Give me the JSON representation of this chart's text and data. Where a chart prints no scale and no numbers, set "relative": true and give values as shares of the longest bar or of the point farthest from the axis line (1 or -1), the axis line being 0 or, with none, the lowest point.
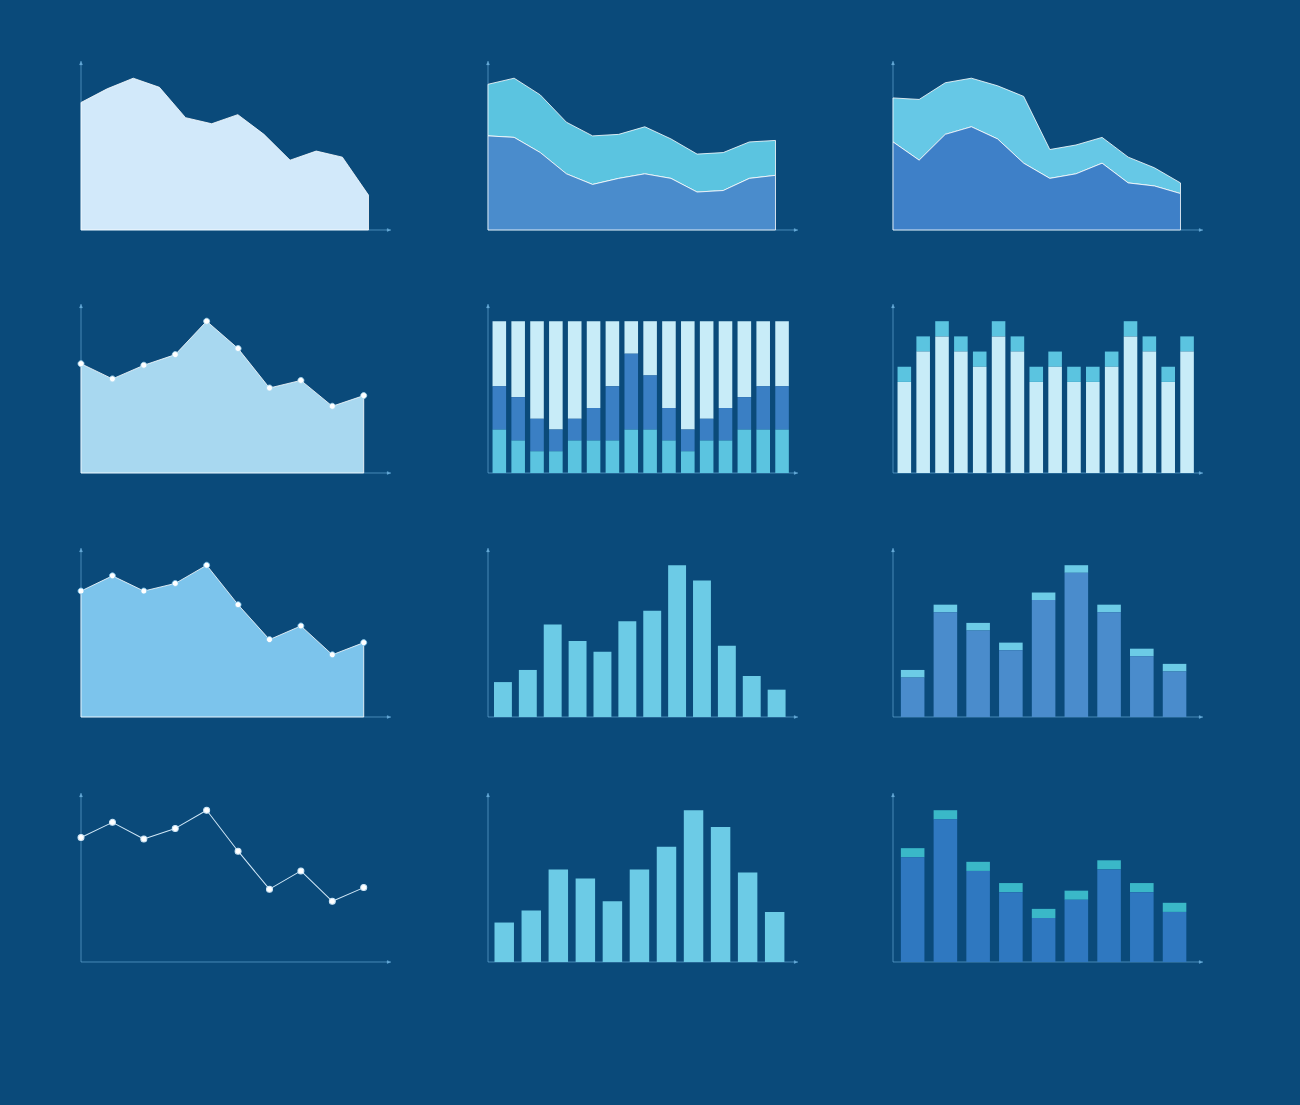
{
  "chart_data": [
    {
      "type": "area",
      "relative": true,
      "categories": [
        null,
        null,
        null,
        null,
        null,
        null,
        null,
        null,
        null,
        null,
        null,
        null
      ],
      "series": [
        {
          "color": "#d2e9fa",
          "values": [
            0.84,
            0.93,
            1,
            0.94,
            0.74,
            0.7,
            0.76,
            0.63,
            0.46,
            0.52,
            0.48,
            0.23
          ]
        }
      ]
    },
    {
      "type": "area",
      "relative": true,
      "stacked": true,
      "categories": [
        null,
        null,
        null,
        null,
        null,
        null,
        null,
        null,
        null,
        null,
        null,
        null
      ],
      "series": [
        {
          "color": "#4a8ccc",
          "values": [
            0.62,
            0.61,
            0.51,
            0.37,
            0.3,
            0.34,
            0.37,
            0.34,
            0.25,
            0.26,
            0.34,
            0.36
          ]
        },
        {
          "color": "#5bc4e0",
          "values": [
            0.34,
            0.39,
            0.38,
            0.34,
            0.32,
            0.29,
            0.31,
            0.26,
            0.25,
            0.25,
            0.24,
            0.23
          ]
        }
      ]
    },
    {
      "type": "area",
      "relative": true,
      "stacked": true,
      "categories": [
        null,
        null,
        null,
        null,
        null,
        null,
        null,
        null,
        null,
        null,
        null,
        null
      ],
      "series": [
        {
          "color": "#3e80c8",
          "values": [
            0.58,
            0.46,
            0.63,
            0.68,
            0.6,
            0.44,
            0.34,
            0.37,
            0.44,
            0.31,
            0.29,
            0.24
          ]
        },
        {
          "color": "#66c8e6",
          "values": [
            0.29,
            0.4,
            0.34,
            0.32,
            0.35,
            0.44,
            0.19,
            0.19,
            0.17,
            0.17,
            0.12,
            0.07
          ]
        }
      ]
    },
    {
      "type": "area",
      "relative": true,
      "marker": "circle",
      "categories": [
        null,
        null,
        null,
        null,
        null,
        null,
        null,
        null,
        null,
        null
      ],
      "series": [
        {
          "color": "#a8d8f0",
          "values": [
            0.72,
            0.62,
            0.71,
            0.78,
            1,
            0.82,
            0.56,
            0.61,
            0.44,
            0.51
          ]
        }
      ]
    },
    {
      "type": "bar",
      "relative": true,
      "stacked": true,
      "categories": [
        null,
        null,
        null,
        null,
        null,
        null,
        null,
        null,
        null,
        null,
        null,
        null,
        null,
        null,
        null,
        null
      ],
      "series": [
        {
          "color": "#5bc4e0",
          "values": [
            0.286,
            0.214,
            0.143,
            0.143,
            0.214,
            0.214,
            0.214,
            0.286,
            0.286,
            0.214,
            0.143,
            0.214,
            0.214,
            0.286,
            0.286,
            0.286
          ]
        },
        {
          "color": "#3a7fc4",
          "values": [
            0.286,
            0.286,
            0.214,
            0.143,
            0.143,
            0.214,
            0.357,
            0.5,
            0.357,
            0.214,
            0.143,
            0.143,
            0.214,
            0.214,
            0.286,
            0.286
          ]
        },
        {
          "color": "#c8ecf8",
          "values": [
            0.428,
            0.5,
            0.643,
            0.714,
            0.643,
            0.572,
            0.429,
            0.214,
            0.357,
            0.572,
            0.714,
            0.643,
            0.572,
            0.5,
            0.428,
            0.428
          ]
        }
      ]
    },
    {
      "type": "bar",
      "relative": true,
      "stacked": true,
      "categories": [
        null,
        null,
        null,
        null,
        null,
        null,
        null,
        null,
        null,
        null,
        null,
        null,
        null,
        null,
        null,
        null
      ],
      "series": [
        {
          "color": "#c8ecf8",
          "values": [
            0.6,
            0.8,
            0.9,
            0.8,
            0.7,
            0.9,
            0.8,
            0.6,
            0.7,
            0.6,
            0.6,
            0.7,
            0.9,
            0.8,
            0.6,
            0.8
          ]
        },
        {
          "color": "#5bc4e0",
          "values": [
            0.1,
            0.1,
            0.1,
            0.1,
            0.1,
            0.1,
            0.1,
            0.1,
            0.1,
            0.1,
            0.1,
            0.1,
            0.1,
            0.1,
            0.1,
            0.1
          ]
        }
      ]
    },
    {
      "type": "area",
      "relative": true,
      "marker": "circle",
      "categories": [
        null,
        null,
        null,
        null,
        null,
        null,
        null,
        null,
        null,
        null
      ],
      "series": [
        {
          "color": "#7cc4ec",
          "values": [
            0.83,
            0.93,
            0.83,
            0.88,
            1,
            0.74,
            0.51,
            0.6,
            0.41,
            0.49
          ]
        }
      ]
    },
    {
      "type": "bar",
      "relative": true,
      "categories": [
        null,
        null,
        null,
        null,
        null,
        null,
        null,
        null,
        null,
        null,
        null,
        null
      ],
      "series": [
        {
          "color": "#6ccbe6",
          "values": [
            0.23,
            0.31,
            0.61,
            0.5,
            0.43,
            0.63,
            0.7,
            1,
            0.9,
            0.47,
            0.27,
            0.18
          ]
        }
      ]
    },
    {
      "type": "bar",
      "relative": true,
      "stacked": true,
      "categories": [
        null,
        null,
        null,
        null,
        null,
        null,
        null,
        null,
        null
      ],
      "series": [
        {
          "color": "#4a8ccc",
          "values": [
            0.26,
            0.69,
            0.57,
            0.44,
            0.77,
            0.95,
            0.69,
            0.4,
            0.3
          ]
        },
        {
          "color": "#6ccbe6",
          "values": [
            0.05,
            0.05,
            0.05,
            0.05,
            0.05,
            0.05,
            0.05,
            0.05,
            0.05
          ]
        }
      ]
    },
    {
      "type": "line",
      "relative": true,
      "marker": "circle",
      "categories": [
        null,
        null,
        null,
        null,
        null,
        null,
        null,
        null,
        null,
        null
      ],
      "series": [
        {
          "color": "#d0e8f8",
          "values": [
            0.82,
            0.92,
            0.81,
            0.88,
            1,
            0.73,
            0.48,
            0.6,
            0.4,
            0.49
          ]
        }
      ]
    },
    {
      "type": "bar",
      "relative": true,
      "categories": [
        null,
        null,
        null,
        null,
        null,
        null,
        null,
        null,
        null,
        null,
        null
      ],
      "series": [
        {
          "color": "#6ccbe6",
          "values": [
            0.26,
            0.34,
            0.61,
            0.55,
            0.4,
            0.61,
            0.76,
            1,
            0.89,
            0.59,
            0.33
          ]
        }
      ]
    },
    {
      "type": "bar",
      "relative": true,
      "stacked": true,
      "categories": [
        null,
        null,
        null,
        null,
        null,
        null,
        null,
        null,
        null
      ],
      "series": [
        {
          "color": "#2f78c0",
          "values": [
            0.69,
            0.94,
            0.6,
            0.46,
            0.29,
            0.41,
            0.61,
            0.46,
            0.33
          ]
        },
        {
          "color": "#3ab8c8",
          "values": [
            0.06,
            0.06,
            0.06,
            0.06,
            0.06,
            0.06,
            0.06,
            0.06,
            0.06
          ]
        }
      ]
    }
  ]
}
